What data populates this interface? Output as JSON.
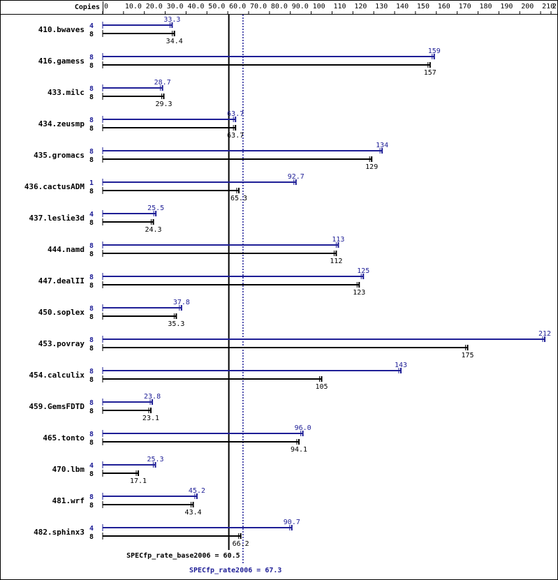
{
  "chart_data": {
    "type": "bar",
    "orientation": "horizontal",
    "axis_title": "Copies",
    "xlim": [
      0,
      215
    ],
    "ticks": [
      0,
      10.0,
      20.0,
      30.0,
      40.0,
      50.0,
      60.0,
      70.0,
      80.0,
      90.0,
      100,
      110,
      120,
      130,
      140,
      150,
      160,
      170,
      180,
      190,
      200,
      210,
      215
    ],
    "tick_labels": [
      "0",
      "10.0",
      "20.0",
      "30.0",
      "40.0",
      "50.0",
      "60.0",
      "70.0",
      "80.0",
      "90.0",
      "100",
      "110",
      "120",
      "130",
      "140",
      "150",
      "160",
      "170",
      "180",
      "190",
      "200",
      "210",
      "215"
    ],
    "categories": [
      "410.bwaves",
      "416.gamess",
      "433.milc",
      "434.zeusmp",
      "435.gromacs",
      "436.cactusADM",
      "437.leslie3d",
      "444.namd",
      "447.dealII",
      "450.soplex",
      "453.povray",
      "454.calculix",
      "459.GemsFDTD",
      "465.tonto",
      "470.lbm",
      "481.wrf",
      "482.sphinx3"
    ],
    "series": [
      {
        "color": "#1e1e96",
        "copies": [
          "4",
          "8",
          "8",
          "8",
          "8",
          "1",
          "4",
          "8",
          "8",
          "8",
          "8",
          "8",
          "8",
          "8",
          "4",
          "8",
          "4"
        ],
        "values": [
          33.3,
          159,
          28.7,
          63.7,
          134,
          92.7,
          25.5,
          113,
          125,
          37.8,
          212,
          143,
          23.8,
          96.0,
          25.3,
          45.2,
          90.7
        ],
        "labels": [
          "33.3",
          "159",
          "28.7",
          "63.7",
          "134",
          "92.7",
          "25.5",
          "113",
          "125",
          "37.8",
          "212",
          "143",
          "23.8",
          "96.0",
          "25.3",
          "45.2",
          "90.7"
        ]
      },
      {
        "color": "#000000",
        "copies": [
          "8",
          "8",
          "8",
          "8",
          "8",
          "8",
          "8",
          "8",
          "8",
          "8",
          "8",
          "8",
          "8",
          "8",
          "8",
          "8",
          "8"
        ],
        "values": [
          34.4,
          157,
          29.3,
          63.7,
          129,
          65.3,
          24.3,
          112,
          123,
          35.3,
          175,
          105,
          23.1,
          94.1,
          17.1,
          43.4,
          66.2
        ],
        "labels": [
          "34.4",
          "157",
          "29.3",
          "63.7",
          "129",
          "65.3",
          "24.3",
          "112",
          "123",
          "35.3",
          "175",
          "105",
          "23.1",
          "94.1",
          "17.1",
          "43.4",
          "66.2"
        ]
      }
    ],
    "reference_lines": [
      {
        "label": "SPECfp_rate_base2006 = 60.5",
        "value": 60.5,
        "style": "solid",
        "color": "#000000"
      },
      {
        "label": "SPECfp_rate2006 = 67.3",
        "value": 67.3,
        "style": "dotted",
        "color": "#1e1e96"
      }
    ]
  }
}
